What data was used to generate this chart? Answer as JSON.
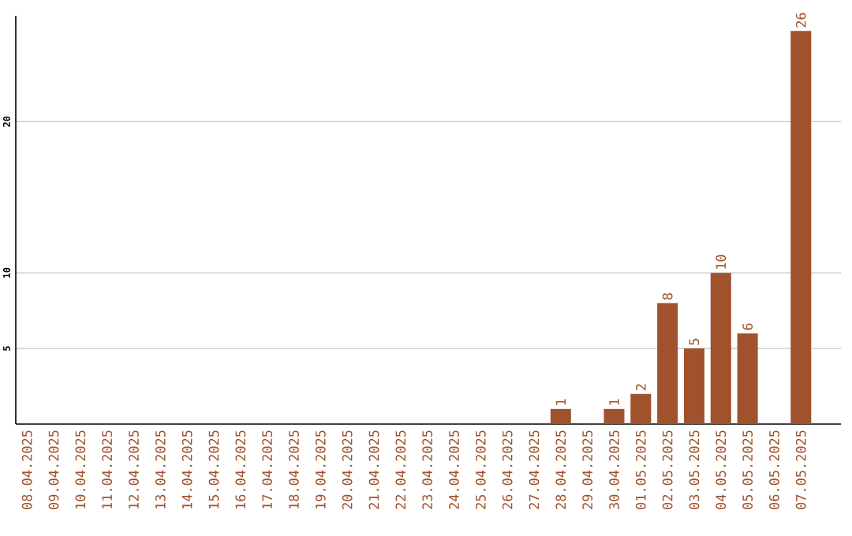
{
  "chart_data": {
    "type": "bar",
    "categories": [
      "08.04.2025",
      "09.04.2025",
      "10.04.2025",
      "11.04.2025",
      "12.04.2025",
      "13.04.2025",
      "14.04.2025",
      "15.04.2025",
      "16.04.2025",
      "17.04.2025",
      "18.04.2025",
      "19.04.2025",
      "20.04.2025",
      "21.04.2025",
      "22.04.2025",
      "23.04.2025",
      "24.04.2025",
      "25.04.2025",
      "26.04.2025",
      "27.04.2025",
      "28.04.2025",
      "29.04.2025",
      "30.04.2025",
      "01.05.2025",
      "02.05.2025",
      "03.05.2025",
      "04.05.2025",
      "05.05.2025",
      "06.05.2025",
      "07.05.2025"
    ],
    "values": [
      0,
      0,
      0,
      0,
      0,
      0,
      0,
      0,
      0,
      0,
      0,
      0,
      0,
      0,
      0,
      0,
      0,
      0,
      0,
      0,
      1,
      0,
      1,
      2,
      8,
      5,
      10,
      6,
      0,
      26
    ],
    "value_labels": [
      null,
      null,
      null,
      null,
      null,
      null,
      null,
      null,
      null,
      null,
      null,
      null,
      null,
      null,
      null,
      null,
      null,
      null,
      null,
      null,
      "1",
      null,
      "1",
      "2",
      "8",
      "5",
      "10",
      "6",
      null,
      "26"
    ],
    "color": "#a0522d",
    "ylim": [
      0,
      27
    ],
    "yticks": [
      5,
      10,
      20
    ],
    "grid": "y"
  }
}
